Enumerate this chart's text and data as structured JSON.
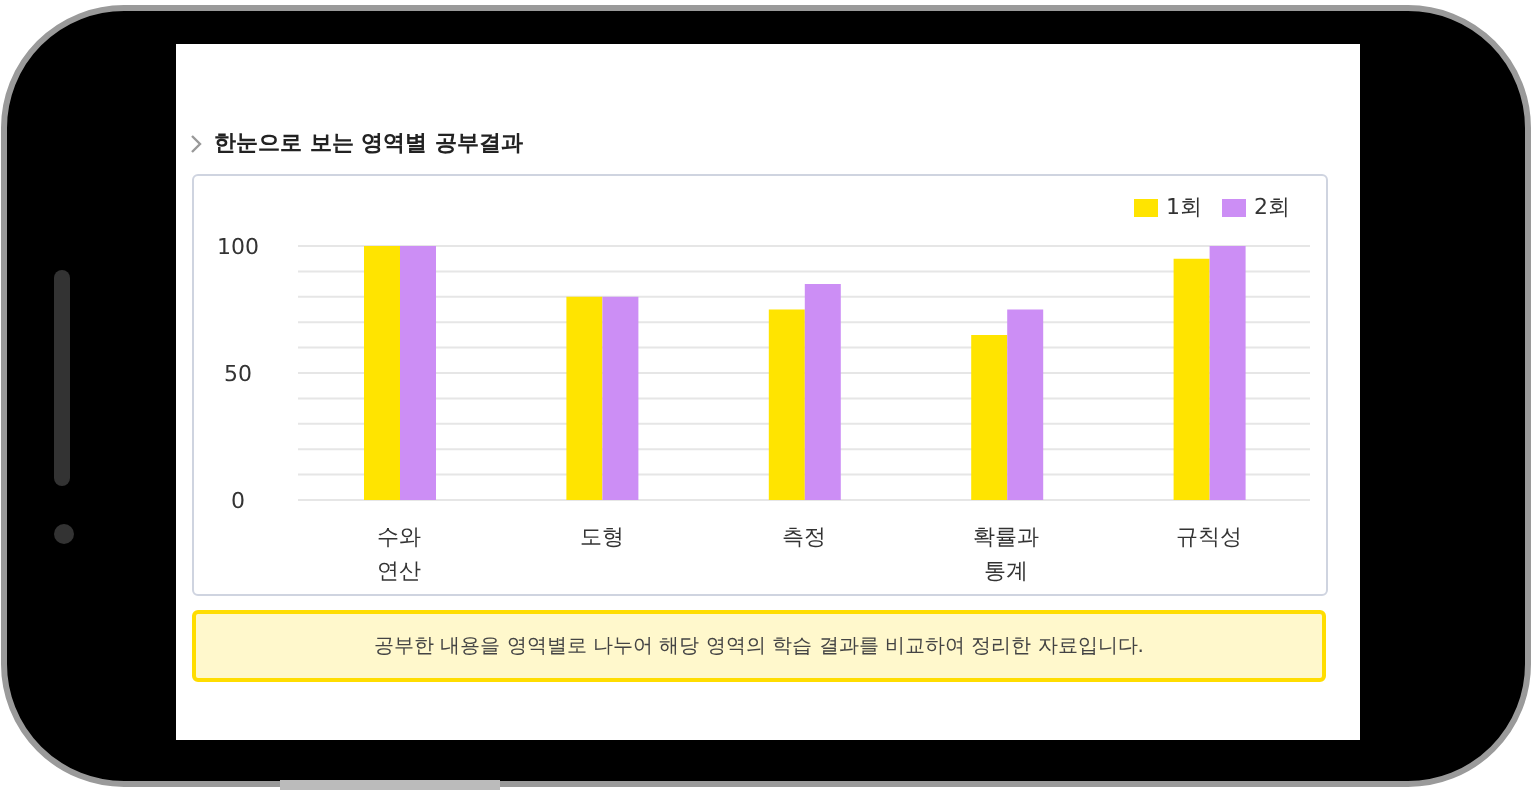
{
  "chart_data": {
    "type": "bar",
    "title": "한눈으로 보는 영역별 공부결과",
    "categories": [
      "수와 연산",
      "도형",
      "측정",
      "확률과 통계",
      "규칙성"
    ],
    "series": [
      {
        "name": "1회",
        "color": "#ffe400",
        "values": [
          100,
          80,
          75,
          65,
          95
        ]
      },
      {
        "name": "2회",
        "color": "#cc8ef5",
        "values": [
          100,
          80,
          85,
          75,
          100
        ]
      }
    ],
    "ylim": [
      0,
      100
    ],
    "yticks": [
      0,
      {
        "value": 10,
        "label": null
      },
      {
        "value": 20,
        "label": null
      },
      {
        "value": 30,
        "label": null
      },
      {
        "value": 40,
        "label": null
      },
      50,
      {
        "value": 60,
        "label": null
      },
      {
        "value": 70,
        "label": null
      },
      {
        "value": 80,
        "label": null
      },
      {
        "value": 90,
        "label": null
      },
      100
    ],
    "grid": "y",
    "legend": "top right",
    "annotations": [
      "공부한 내용을 영역별로 나누어 해당 영역의 학습 결과를 비교하여 정리한 자료입니다."
    ]
  }
}
